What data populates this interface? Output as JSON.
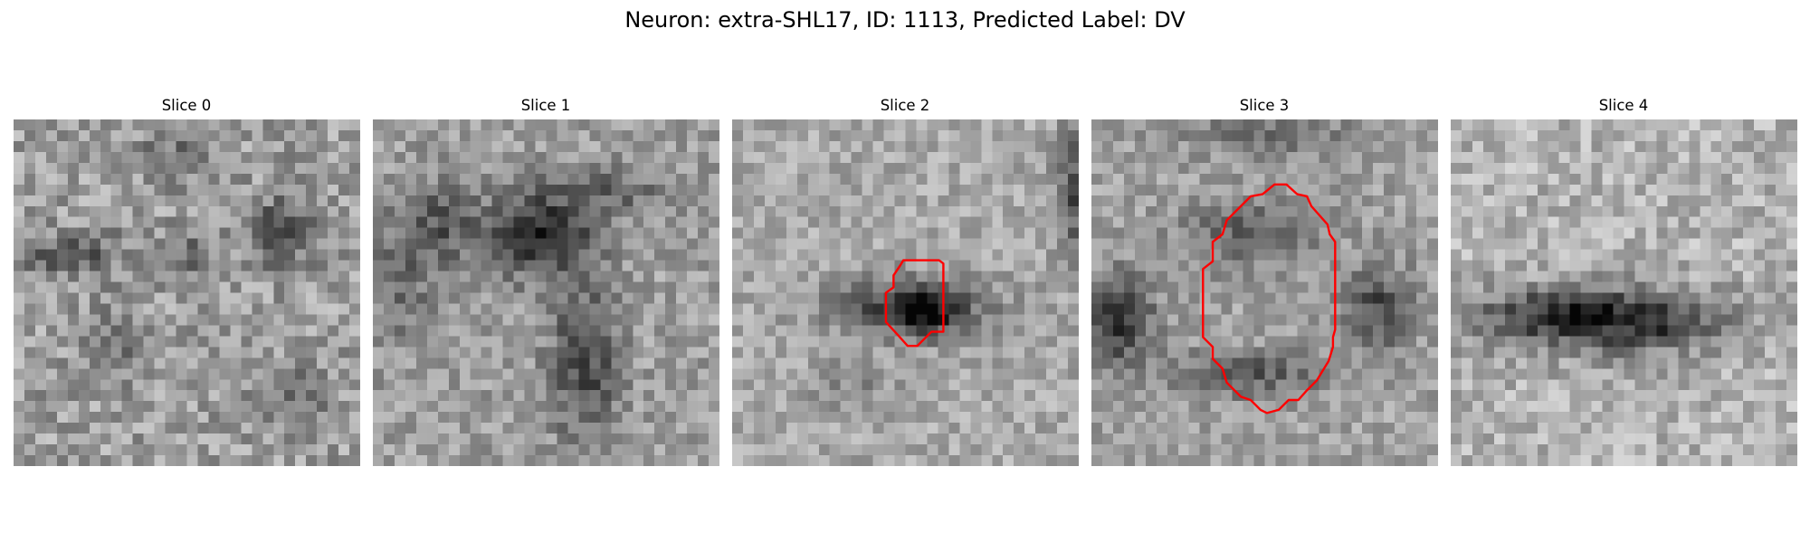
{
  "figure": {
    "title": "Neuron: extra-SHL17, ID: 1113, Predicted Label: DV"
  },
  "panels": [
    {
      "title": "Slice 0",
      "has_contour": false
    },
    {
      "title": "Slice 1",
      "has_contour": false
    },
    {
      "title": "Slice 2",
      "has_contour": true
    },
    {
      "title": "Slice 3",
      "has_contour": true
    },
    {
      "title": "Slice 4",
      "has_contour": false
    }
  ],
  "colors": {
    "contour": "#ff0000",
    "background": "#ffffff",
    "colormap": "grayscale"
  }
}
